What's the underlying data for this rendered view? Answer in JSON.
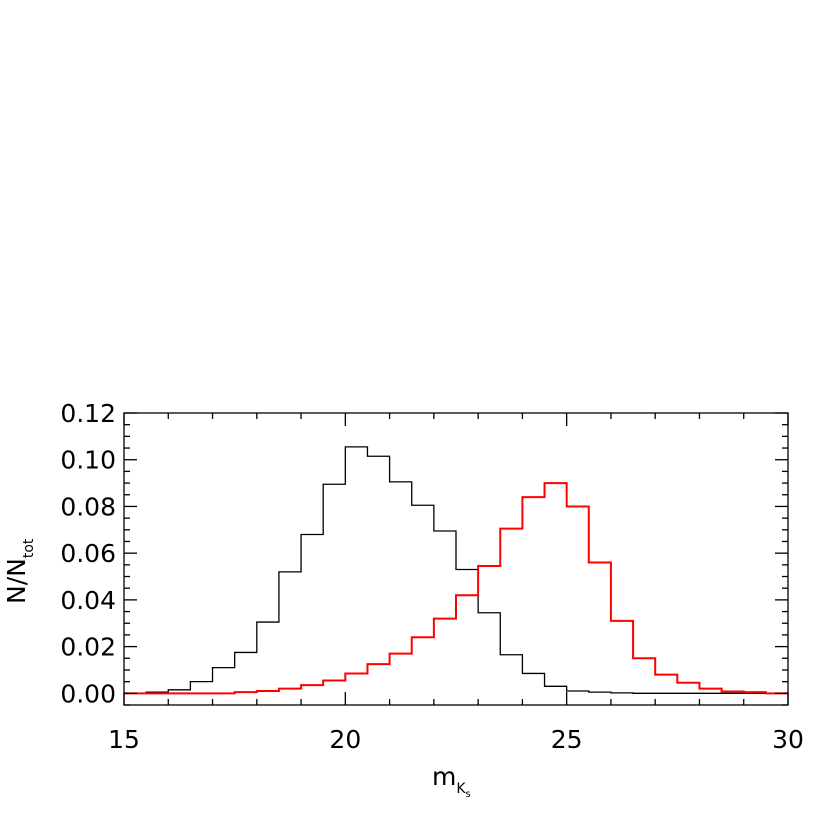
{
  "chart_data": {
    "type": "histogram",
    "xlabel": {
      "main": "m",
      "sub": "K",
      "subsub": "s"
    },
    "ylabel": {
      "main": "N/N",
      "sub": "tot"
    },
    "xlim": [
      15,
      30
    ],
    "ylim": [
      -0.005,
      0.12
    ],
    "x_ticks": [
      15,
      20,
      25,
      30
    ],
    "x_tick_labels": [
      "15",
      "20",
      "25",
      "30"
    ],
    "x_minor_step": 1,
    "y_ticks": [
      0.0,
      0.02,
      0.04,
      0.06,
      0.08,
      0.1,
      0.12
    ],
    "y_tick_labels": [
      "0.00",
      "0.02",
      "0.04",
      "0.06",
      "0.08",
      "0.10",
      "0.12"
    ],
    "y_minor_step": 0.005,
    "grid": false,
    "bin_edges": [
      15.0,
      15.5,
      16.0,
      16.5,
      17.0,
      17.5,
      18.0,
      18.5,
      19.0,
      19.5,
      20.0,
      20.5,
      21.0,
      21.5,
      22.0,
      22.5,
      23.0,
      23.5,
      24.0,
      24.5,
      25.0,
      25.5,
      26.0,
      26.5,
      27.0,
      27.5,
      28.0,
      28.5,
      29.0,
      29.5,
      30.0
    ],
    "series": [
      {
        "color": "#000000",
        "values": [
          0.0,
          0.0005,
          0.0015,
          0.005,
          0.011,
          0.0175,
          0.0305,
          0.052,
          0.068,
          0.0895,
          0.1055,
          0.1015,
          0.0905,
          0.0805,
          0.0695,
          0.053,
          0.0345,
          0.0165,
          0.0085,
          0.003,
          0.001,
          0.0005,
          0.0002,
          0.0,
          0.0,
          0.0,
          0.0,
          0.0,
          0.0,
          0.0
        ]
      },
      {
        "color": "#ff0000",
        "values": [
          0.0,
          0.0,
          0.0,
          0.0,
          0.0,
          0.0005,
          0.001,
          0.002,
          0.0035,
          0.0055,
          0.0085,
          0.0125,
          0.017,
          0.024,
          0.032,
          0.042,
          0.0545,
          0.0705,
          0.084,
          0.09,
          0.08,
          0.056,
          0.031,
          0.015,
          0.008,
          0.0045,
          0.002,
          0.0008,
          0.0005,
          0.0
        ]
      }
    ]
  }
}
